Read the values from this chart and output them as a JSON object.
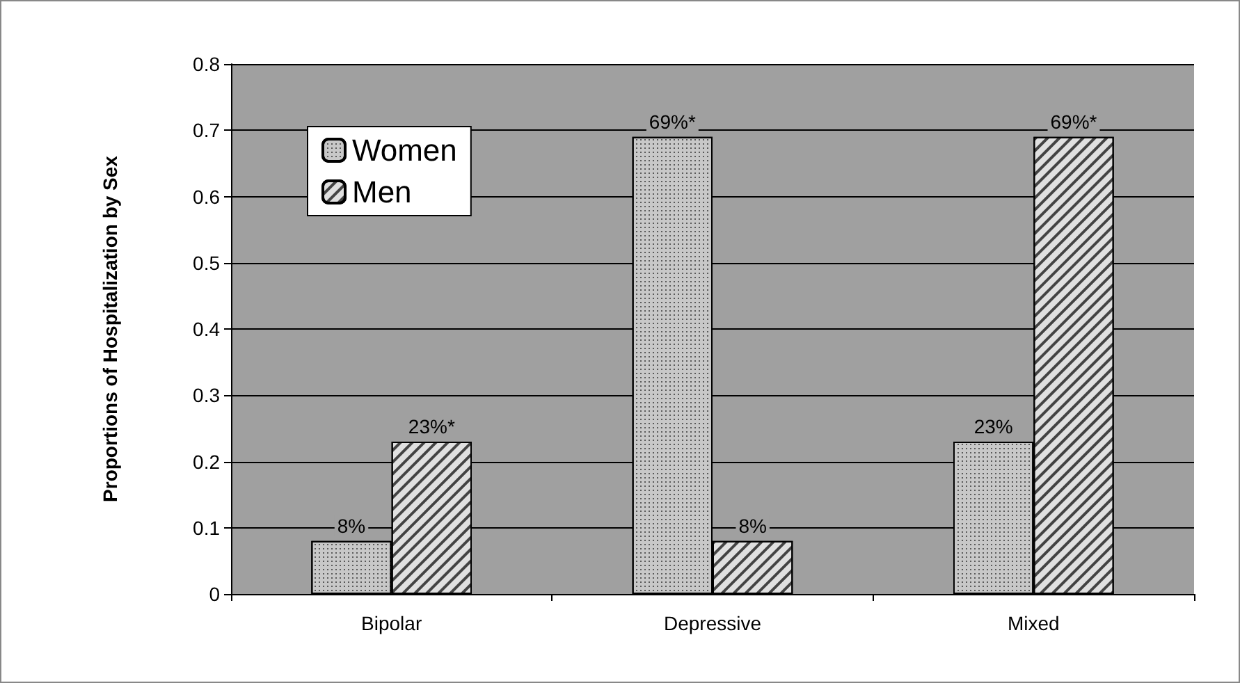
{
  "chart_data": {
    "type": "bar",
    "ylabel": "Proportions of Hospitalization by Sex",
    "categories": [
      "Bipolar",
      "Depressive",
      "Mixed"
    ],
    "series": [
      {
        "name": "Women",
        "color": "#c8c8c8",
        "values": [
          0.08,
          0.69,
          0.23
        ],
        "value_labels": [
          "8%",
          "69%*",
          "23%"
        ]
      },
      {
        "name": "Men",
        "color": "#e0e0e0",
        "values": [
          0.23,
          0.08,
          0.69
        ],
        "value_labels": [
          "23%*",
          "8%",
          "69%*"
        ]
      }
    ],
    "ylim": [
      0,
      0.8
    ],
    "yticks": [
      0,
      0.1,
      0.2,
      0.3,
      0.4,
      0.5,
      0.6,
      0.7,
      0.8
    ],
    "grid": "y",
    "legend": "top left"
  }
}
